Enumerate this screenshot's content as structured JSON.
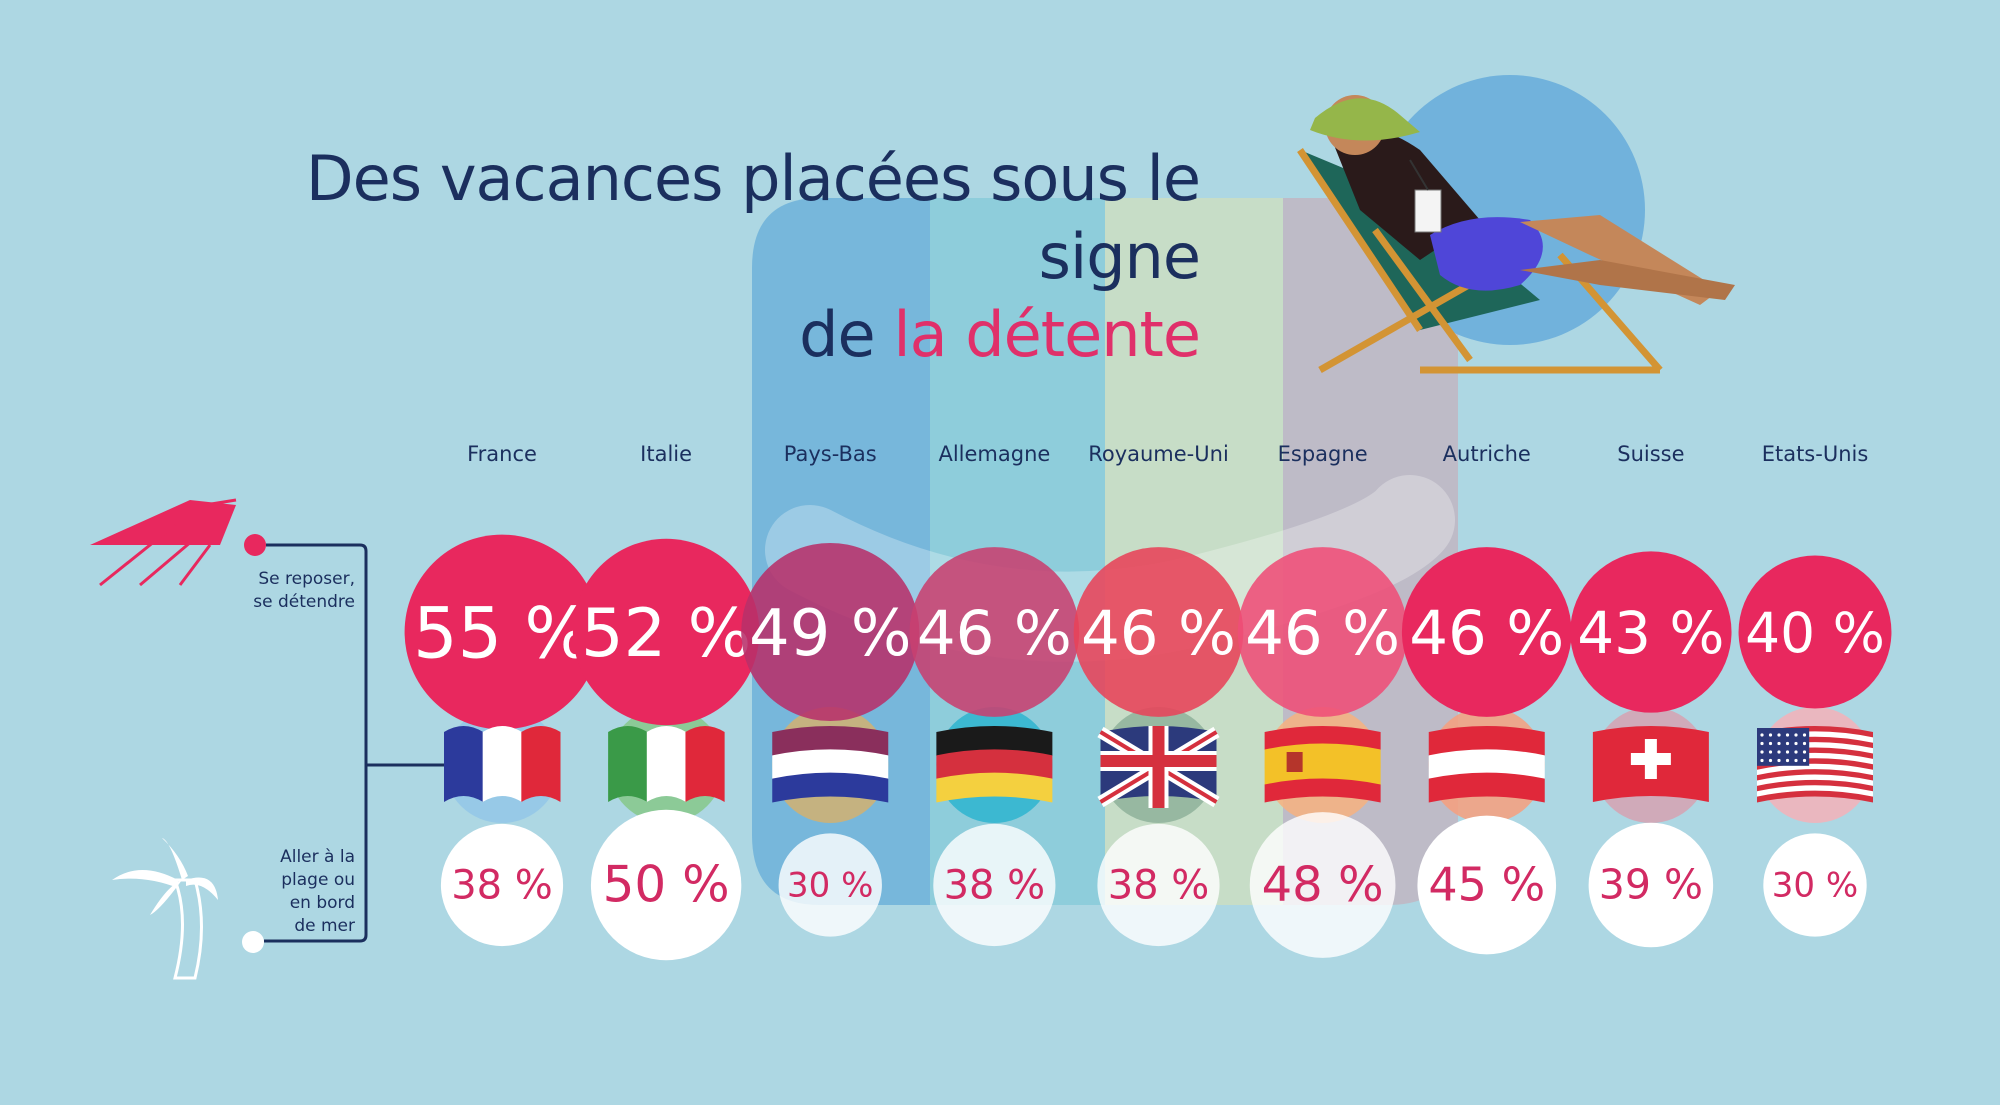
{
  "title": {
    "line1": "Des vacances placées sous le signe",
    "line2_prefix": "de ",
    "line2_accent": "la détente"
  },
  "colors": {
    "background": "#add7e3",
    "title": "#1b2f5e",
    "accent": "#e0306a",
    "relax_circle": "#e8285e",
    "beach_circle": "#ffffff",
    "beach_text": "#d22a63"
  },
  "icons": {
    "relax": "deckchair-icon",
    "beach": "palm-tree-icon"
  },
  "chart_data": {
    "type": "bubble",
    "categories": [
      "France",
      "Italie",
      "Pays-Bas",
      "Allemagne",
      "Royaume-Uni",
      "Espagne",
      "Autriche",
      "Suisse",
      "Etats-Unis"
    ],
    "series": [
      {
        "name": "Se reposer, se détendre",
        "values": [
          55,
          52,
          49,
          46,
          46,
          46,
          46,
          43,
          40
        ],
        "labels": [
          "55 %",
          "52 %",
          "49 %",
          "46 %",
          "46 %",
          "46 %",
          "46 %",
          "43 %",
          "40 %"
        ]
      },
      {
        "name": "Aller à la plage ou en bord de mer",
        "values": [
          38,
          50,
          30,
          38,
          38,
          48,
          45,
          39,
          30
        ],
        "labels": [
          "38 %",
          "50 %",
          "30 %",
          "38 %",
          "38 %",
          "48 %",
          "45 %",
          "39 %",
          "30 %"
        ]
      }
    ],
    "flags": [
      "france-flag-icon",
      "italy-flag-icon",
      "netherlands-flag-icon",
      "germany-flag-icon",
      "uk-flag-icon",
      "spain-flag-icon",
      "austria-flag-icon",
      "switzerland-flag-icon",
      "usa-flag-icon"
    ],
    "legend_lines": {
      "relax": [
        "Se reposer,",
        "se détendre"
      ],
      "beach": [
        "Aller à la",
        "plage ou",
        "en bord",
        "de mer"
      ]
    }
  }
}
